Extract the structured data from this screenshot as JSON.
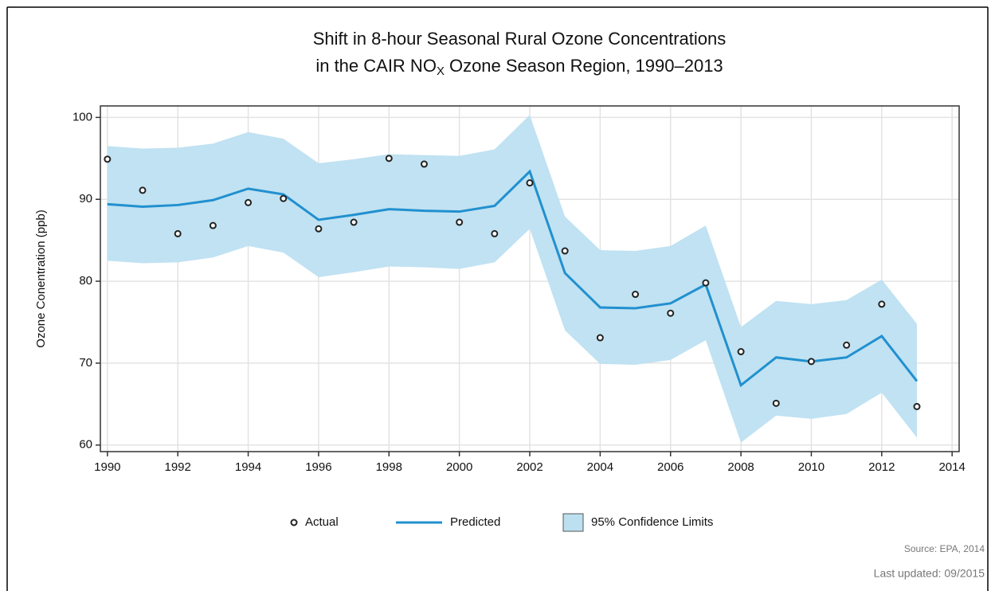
{
  "chart_data": {
    "type": "line",
    "title": [
      "Shift in 8-hour Seasonal Rural Ozone Concentrations",
      [
        "in the CAIR NO",
        "X",
        "Ozone Season Region, 1990–2013"
      ]
    ],
    "y_label": "Ozone Conentration (ppb)",
    "x": [
      1990,
      1991,
      1992,
      1993,
      1994,
      1995,
      1996,
      1997,
      1998,
      1999,
      2000,
      2001,
      2002,
      2003,
      2004,
      2005,
      2006,
      2007,
      2008,
      2009,
      2010,
      2011,
      2012,
      2013
    ],
    "series": [
      {
        "name": "Actual",
        "type": "scatter",
        "color": "#222222",
        "values": [
          94.9,
          91.1,
          85.8,
          86.8,
          89.6,
          90.1,
          86.4,
          87.2,
          95.0,
          94.3,
          87.2,
          85.8,
          92.0,
          83.7,
          73.1,
          78.4,
          76.1,
          79.8,
          71.4,
          65.1,
          70.2,
          72.2,
          77.2,
          64.7
        ]
      },
      {
        "name": "Predicted",
        "type": "line",
        "color": "#2190cf",
        "values": [
          89.4,
          89.1,
          89.3,
          89.9,
          91.3,
          90.6,
          87.5,
          88.1,
          88.8,
          88.6,
          88.5,
          89.2,
          93.4,
          81.0,
          76.8,
          76.7,
          77.3,
          79.6,
          67.3,
          70.7,
          70.2,
          70.7,
          73.3,
          67.8
        ]
      },
      {
        "name": "95% Confidence Limits",
        "type": "band",
        "color": "#bde0f1",
        "upper": [
          96.5,
          96.2,
          96.3,
          96.8,
          98.2,
          97.4,
          94.4,
          94.9,
          95.5,
          95.4,
          95.3,
          96.1,
          100.3,
          87.9,
          83.8,
          83.7,
          84.3,
          86.8,
          74.4,
          77.6,
          77.2,
          77.7,
          80.2,
          74.8
        ],
        "lower": [
          82.5,
          82.2,
          82.3,
          82.9,
          84.3,
          83.5,
          80.5,
          81.1,
          81.8,
          81.7,
          81.5,
          82.3,
          86.4,
          74.0,
          69.9,
          69.8,
          70.4,
          72.8,
          60.3,
          63.6,
          63.2,
          63.8,
          66.4,
          60.9
        ]
      }
    ],
    "xlim": [
      1989.8,
      2014.2
    ],
    "xticks": [
      1990,
      1992,
      1994,
      1996,
      1998,
      2000,
      2002,
      2004,
      2006,
      2008,
      2010,
      2012,
      2014
    ],
    "ylim": [
      59.2,
      101.4
    ],
    "yticks": [
      60,
      70,
      80,
      90,
      100
    ],
    "grid": true,
    "legend": "bottom",
    "source": "Source: EPA, 2014",
    "updated": "Last updated: 09/2015"
  }
}
